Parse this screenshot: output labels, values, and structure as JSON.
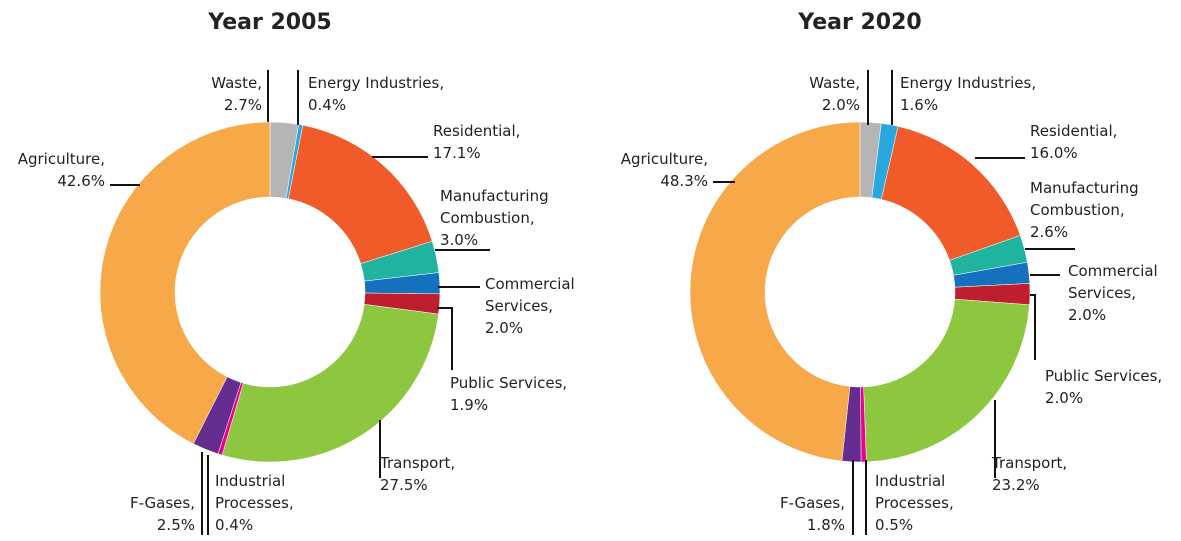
{
  "chart_data": [
    {
      "type": "donut",
      "title": "Year 2005",
      "categories": [
        "Waste,",
        "Energy Industries,",
        "Residential,",
        "Manufacturing Combustion,",
        "Commercial Services,",
        "Public Services,",
        "Transport,",
        "Industrial Processes,",
        "F-Gases,",
        "Agriculture,"
      ],
      "values": [
        2.7,
        0.4,
        17.1,
        3.0,
        2.0,
        1.9,
        27.5,
        0.4,
        2.5,
        42.6
      ],
      "value_labels": [
        "2.7%",
        "0.4%",
        "17.1%",
        "3.0%",
        "2.0%",
        "1.9%",
        "27.5%",
        "0.4%",
        "2.5%",
        "42.6%"
      ],
      "colors": [
        "#b5b5b5",
        "#29a8e0",
        "#f15a29",
        "#1fb3a0",
        "#1570be",
        "#be1e2d",
        "#8dc63f",
        "#ec008c",
        "#662d91",
        "#f7a94a"
      ]
    },
    {
      "type": "donut",
      "title": "Year 2020",
      "categories": [
        "Waste,",
        "Energy Industries,",
        "Residential,",
        "Manufacturing Combustion,",
        "Commercial Services,",
        "Public Services,",
        "Transport,",
        "Industrial Processes,",
        "F-Gases,",
        "Agriculture,"
      ],
      "values": [
        2.0,
        1.6,
        16.0,
        2.6,
        2.0,
        2.0,
        23.2,
        0.5,
        1.8,
        48.3
      ],
      "value_labels": [
        "2.0%",
        "1.6%",
        "16.0%",
        "2.6%",
        "2.0%",
        "2.0%",
        "23.2%",
        "0.5%",
        "1.8%",
        "48.3%"
      ],
      "colors": [
        "#b5b5b5",
        "#29a8e0",
        "#f15a29",
        "#1fb3a0",
        "#1570be",
        "#be1e2d",
        "#8dc63f",
        "#ec008c",
        "#662d91",
        "#f7a94a"
      ]
    }
  ]
}
